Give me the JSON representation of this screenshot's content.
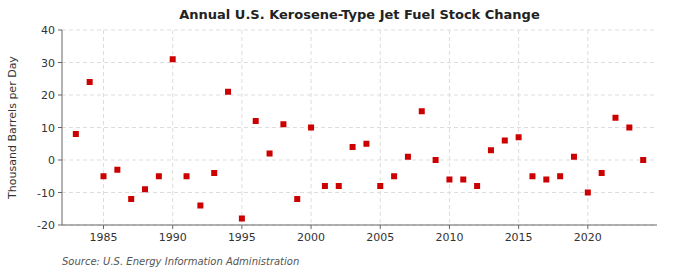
{
  "chart_data": {
    "type": "scatter",
    "title": "Annual U.S. Kerosene-Type Jet Fuel Stock Change",
    "ylabel": "Thousand Barrels per Day",
    "annotation": "Source: U.S. Energy Information Administration",
    "color": "#cc0000",
    "marker": "square",
    "grid": true,
    "xlim": [
      1982,
      2025
    ],
    "xticks": [
      1985,
      1990,
      1995,
      2000,
      2005,
      2010,
      2015,
      2020
    ],
    "ylim": [
      -20,
      40
    ],
    "yticks": [
      -20,
      -10,
      0,
      10,
      20,
      30,
      40
    ],
    "x": [
      1983,
      1984,
      1985,
      1986,
      1987,
      1988,
      1989,
      1990,
      1991,
      1992,
      1993,
      1994,
      1995,
      1996,
      1997,
      1998,
      1999,
      2000,
      2001,
      2002,
      2003,
      2004,
      2005,
      2006,
      2007,
      2008,
      2009,
      2010,
      2011,
      2012,
      2013,
      2014,
      2015,
      2016,
      2017,
      2018,
      2019,
      2020,
      2021,
      2022,
      2023,
      2024
    ],
    "values": [
      8,
      24,
      -5,
      -3,
      -12,
      -9,
      -5,
      31,
      -5,
      -14,
      -4,
      21,
      -18,
      12,
      2,
      11,
      -12,
      10,
      -8,
      -8,
      4,
      5,
      -8,
      -5,
      1,
      15,
      0,
      -6,
      -6,
      -8,
      3,
      6,
      7,
      -5,
      -6,
      -5,
      1,
      -10,
      -4,
      13,
      10,
      0
    ]
  }
}
